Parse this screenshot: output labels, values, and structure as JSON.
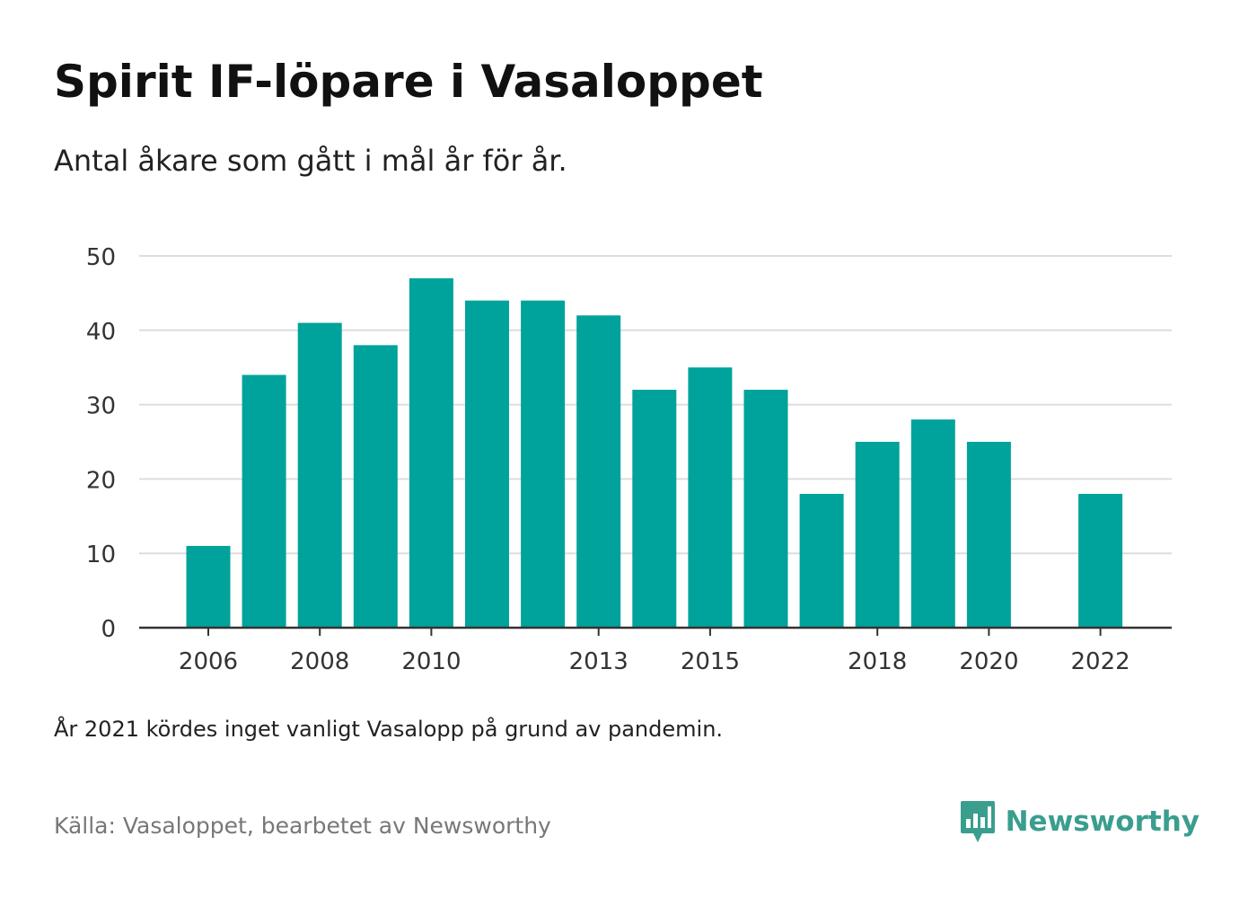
{
  "title": "Spirit IF-löpare i Vasaloppet",
  "subtitle": "Antal åkare som gått i mål år för år.",
  "note": "År 2021 kördes inget vanligt Vasalopp på grund av pandemin.",
  "source": "Källa: Vasaloppet, bearbetet av Newsworthy",
  "logo": {
    "text": "Newsworthy",
    "icon": "newsworthy-logo-icon",
    "color": "#3a9e8f"
  },
  "colors": {
    "bar": "#00a39b",
    "grid": "#dddddd",
    "axis": "#333333",
    "tick_text": "#333333"
  },
  "chart_data": {
    "type": "bar",
    "title": "Spirit IF-löpare i Vasaloppet",
    "subtitle": "Antal åkare som gått i mål år för år.",
    "xlabel": "",
    "ylabel": "",
    "ylim": [
      0,
      50
    ],
    "yticks": [
      0,
      10,
      20,
      30,
      40,
      50
    ],
    "grid": true,
    "categories": [
      "2006",
      "2007",
      "2008",
      "2009",
      "2010",
      "2011",
      "2012",
      "2013",
      "2014",
      "2015",
      "2016",
      "2017",
      "2018",
      "2019",
      "2020",
      "2021",
      "2022"
    ],
    "xtick_labels": [
      "2006",
      "2008",
      "2010",
      "2013",
      "2015",
      "2018",
      "2020",
      "2022"
    ],
    "values": [
      11,
      34,
      41,
      38,
      47,
      44,
      44,
      42,
      32,
      35,
      32,
      18,
      25,
      28,
      25,
      null,
      18
    ]
  }
}
